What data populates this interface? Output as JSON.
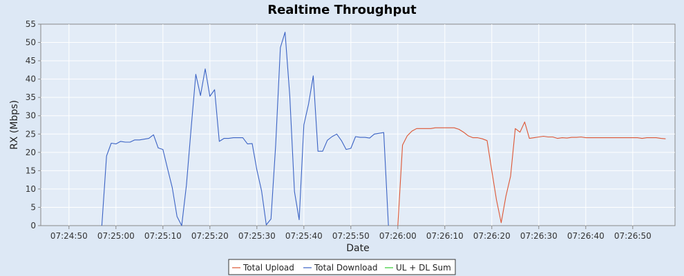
{
  "chart_data": {
    "type": "line",
    "title": "Realtime Throughput",
    "xlabel": "Date",
    "ylabel": "RX (Mbps)",
    "ylim": [
      0,
      55
    ],
    "y_ticks": [
      0,
      5,
      10,
      15,
      20,
      25,
      30,
      35,
      40,
      45,
      50,
      55
    ],
    "x_ticks": [
      "07:24:50",
      "07:25:00",
      "07:25:10",
      "07:25:20",
      "07:25:30",
      "07:25:40",
      "07:25:50",
      "07:26:00",
      "07:26:10",
      "07:26:20",
      "07:26:30",
      "07:26:40",
      "07:26:50"
    ],
    "x_range": [
      "07:24:44",
      "07:26:59"
    ],
    "grid": true,
    "legend_position": "bottom",
    "series": [
      {
        "name": "Total Upload",
        "color": "#dd5533",
        "points": [
          [
            "07:26:00",
            0
          ],
          [
            "07:26:01",
            22
          ],
          [
            "07:26:02",
            24.5
          ],
          [
            "07:26:03",
            25.8
          ],
          [
            "07:26:04",
            26.5
          ],
          [
            "07:26:05",
            26.5
          ],
          [
            "07:26:06",
            26.5
          ],
          [
            "07:26:07",
            26.5
          ],
          [
            "07:26:08",
            26.7
          ],
          [
            "07:26:09",
            26.7
          ],
          [
            "07:26:10",
            26.7
          ],
          [
            "07:26:11",
            26.7
          ],
          [
            "07:26:12",
            26.7
          ],
          [
            "07:26:13",
            26.3
          ],
          [
            "07:26:14",
            25.5
          ],
          [
            "07:26:15",
            24.5
          ],
          [
            "07:26:16",
            24
          ],
          [
            "07:26:17",
            24
          ],
          [
            "07:26:18",
            23.7
          ],
          [
            "07:26:19",
            23.2
          ],
          [
            "07:26:20",
            15
          ],
          [
            "07:26:21",
            7
          ],
          [
            "07:26:22",
            0.8
          ],
          [
            "07:26:23",
            8
          ],
          [
            "07:26:24",
            13.5
          ],
          [
            "07:26:25",
            26.5
          ],
          [
            "07:26:26",
            25.5
          ],
          [
            "07:26:27",
            28.3
          ],
          [
            "07:26:28",
            23.8
          ],
          [
            "07:26:29",
            24
          ],
          [
            "07:26:30",
            24.2
          ],
          [
            "07:26:31",
            24.4
          ],
          [
            "07:26:32",
            24.2
          ],
          [
            "07:26:33",
            24.2
          ],
          [
            "07:26:34",
            23.8
          ],
          [
            "07:26:35",
            24
          ],
          [
            "07:26:36",
            23.9
          ],
          [
            "07:26:37",
            24.1
          ],
          [
            "07:26:38",
            24.1
          ],
          [
            "07:26:39",
            24.2
          ],
          [
            "07:26:40",
            24
          ],
          [
            "07:26:41",
            24
          ],
          [
            "07:26:42",
            24
          ],
          [
            "07:26:43",
            24
          ],
          [
            "07:26:44",
            24
          ],
          [
            "07:26:45",
            24
          ],
          [
            "07:26:46",
            24
          ],
          [
            "07:26:47",
            24
          ],
          [
            "07:26:48",
            24
          ],
          [
            "07:26:49",
            24
          ],
          [
            "07:26:50",
            24
          ],
          [
            "07:26:51",
            24
          ],
          [
            "07:26:52",
            23.8
          ],
          [
            "07:26:53",
            24
          ],
          [
            "07:26:54",
            24
          ],
          [
            "07:26:55",
            24
          ],
          [
            "07:26:56",
            23.8
          ],
          [
            "07:26:57",
            23.7
          ]
        ]
      },
      {
        "name": "Total Download",
        "color": "#3a62c4",
        "points": [
          [
            "07:24:57",
            0
          ],
          [
            "07:24:58",
            19
          ],
          [
            "07:24:59",
            22.5
          ],
          [
            "07:25:00",
            22.3
          ],
          [
            "07:25:01",
            23
          ],
          [
            "07:25:02",
            22.8
          ],
          [
            "07:25:03",
            22.8
          ],
          [
            "07:25:04",
            23.4
          ],
          [
            "07:25:05",
            23.4
          ],
          [
            "07:25:06",
            23.6
          ],
          [
            "07:25:07",
            23.8
          ],
          [
            "07:25:08",
            24.8
          ],
          [
            "07:25:09",
            21.2
          ],
          [
            "07:25:10",
            20.8
          ],
          [
            "07:25:11",
            15.5
          ],
          [
            "07:25:12",
            10.3
          ],
          [
            "07:25:13",
            2.5
          ],
          [
            "07:25:14",
            0
          ],
          [
            "07:25:15",
            11
          ],
          [
            "07:25:16",
            26.5
          ],
          [
            "07:25:17",
            41.3
          ],
          [
            "07:25:18",
            35.5
          ],
          [
            "07:25:19",
            42.8
          ],
          [
            "07:25:20",
            35.3
          ],
          [
            "07:25:21",
            37.1
          ],
          [
            "07:25:22",
            23
          ],
          [
            "07:25:23",
            23.8
          ],
          [
            "07:25:24",
            23.8
          ],
          [
            "07:25:25",
            24
          ],
          [
            "07:25:26",
            24
          ],
          [
            "07:25:27",
            24
          ],
          [
            "07:25:28",
            22.3
          ],
          [
            "07:25:29",
            22.4
          ],
          [
            "07:25:30",
            15.2
          ],
          [
            "07:25:31",
            9.5
          ],
          [
            "07:25:32",
            0.2
          ],
          [
            "07:25:33",
            1.8
          ],
          [
            "07:25:34",
            22
          ],
          [
            "07:25:35",
            48.6
          ],
          [
            "07:25:36",
            52.8
          ],
          [
            "07:25:37",
            35.5
          ],
          [
            "07:25:38",
            9.3
          ],
          [
            "07:25:39",
            1.6
          ],
          [
            "07:25:40",
            27.5
          ],
          [
            "07:25:41",
            33.2
          ],
          [
            "07:25:42",
            40.9
          ],
          [
            "07:25:43",
            20.3
          ],
          [
            "07:25:44",
            20.3
          ],
          [
            "07:25:45",
            23.3
          ],
          [
            "07:25:46",
            24.3
          ],
          [
            "07:25:47",
            25
          ],
          [
            "07:25:48",
            23.2
          ],
          [
            "07:25:49",
            20.8
          ],
          [
            "07:25:50",
            21.1
          ],
          [
            "07:25:51",
            24.3
          ],
          [
            "07:25:52",
            24.1
          ],
          [
            "07:25:53",
            24.1
          ],
          [
            "07:25:54",
            23.9
          ],
          [
            "07:25:55",
            25
          ],
          [
            "07:25:56",
            25.2
          ],
          [
            "07:25:57",
            25.4
          ],
          [
            "07:25:58",
            0
          ]
        ]
      },
      {
        "name": "UL + DL Sum",
        "color": "#33cc33",
        "points": []
      }
    ]
  }
}
